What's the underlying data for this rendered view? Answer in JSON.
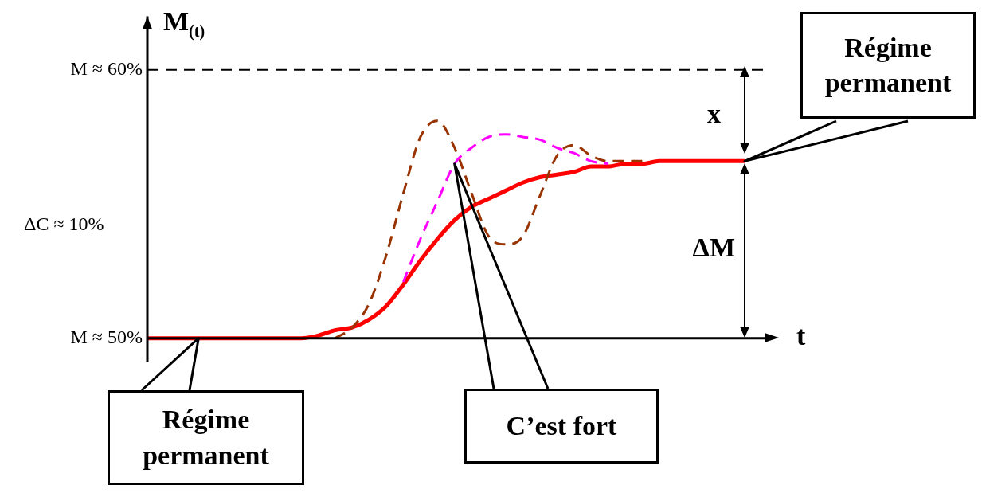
{
  "chart_data": {
    "type": "line",
    "xlabel": "t",
    "ylabel": "M$_{(t)}$",
    "categories": [
      null,
      null,
      null,
      null,
      null,
      null,
      null,
      null,
      null,
      null,
      null,
      null,
      null,
      null,
      null,
      null,
      null,
      null,
      null,
      null,
      null,
      null,
      null,
      null,
      null,
      null,
      null,
      null,
      null,
      null,
      null,
      null,
      null,
      null,
      null,
      null
    ],
    "series": [
      {
        "color": "#ff0000",
        "line_style": "solid",
        "values": [
          50,
          50,
          50,
          50,
          50,
          50,
          50,
          50,
          50,
          50.0,
          50.1,
          50.3,
          50.4,
          50.7,
          51.2,
          52.0,
          52.9,
          53.7,
          54.4,
          54.9,
          55.2,
          55.5,
          55.8,
          56.0,
          56.1,
          56.2,
          56.4,
          56.4,
          56.5,
          56.5,
          56.6,
          56.6,
          56.6,
          56.6,
          56.6,
          56.6
        ]
      },
      {
        "color": "#993300",
        "line_style": "dashed",
        "values": [
          null,
          null,
          null,
          null,
          null,
          null,
          null,
          null,
          null,
          null,
          null,
          50,
          50.4,
          51.3,
          53.1,
          55.4,
          57.5,
          58.1,
          57.1,
          55.4,
          53.8,
          53.5,
          53.8,
          55.3,
          56.8,
          57.2,
          56.8,
          56.6,
          56.6,
          56.6,
          null,
          null,
          null,
          null,
          null,
          null
        ]
      },
      {
        "color": "#ff00ff",
        "line_style": "dashed",
        "values": [
          null,
          null,
          null,
          null,
          null,
          null,
          null,
          null,
          null,
          null,
          null,
          null,
          null,
          null,
          null,
          52.1,
          53.7,
          55.1,
          56.5,
          57.1,
          57.5,
          57.6,
          57.5,
          57.4,
          57.1,
          56.9,
          56.6,
          56.5,
          null,
          null,
          null,
          null,
          null,
          null,
          null,
          null
        ]
      }
    ],
    "ylim": [
      49.1,
      62
    ],
    "yticks": [
      {
        "value": 50,
        "label": "M ≈ 50%"
      },
      {
        "value": 60,
        "label": "M ≈ 60%"
      }
    ],
    "ref_lines": [
      {
        "axis": "y",
        "value": 60,
        "label": null,
        "color": "#000000",
        "line_style": "dashed"
      },
      {
        "axis": "y",
        "value": 50,
        "label": null,
        "color": "#000000",
        "line_style": "solid"
      }
    ],
    "annotations": [
      "ΔC ≈ 10%",
      "x",
      "ΔM",
      "Régime permanent",
      "Régime permanent",
      "C’est fort"
    ],
    "tick_labels": "y",
    "grid": false,
    "legend": false,
    "marker": "none"
  }
}
